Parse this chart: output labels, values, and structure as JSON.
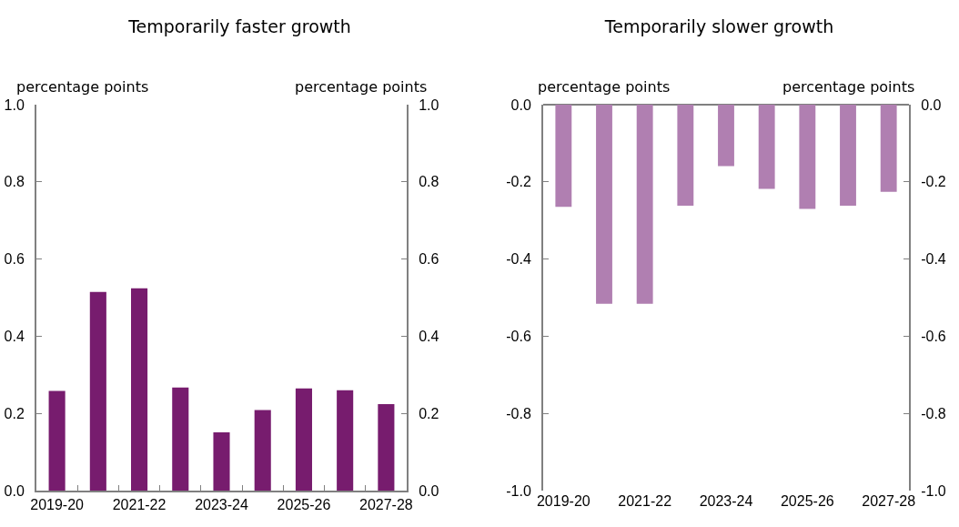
{
  "chart_data": [
    {
      "type": "bar",
      "title": "Temporarily faster growth",
      "ylabel": "percentage points",
      "y2label": "percentage points",
      "categories": [
        "2019-20",
        null,
        "2021-22",
        null,
        "2023-24",
        null,
        "2025-26",
        null,
        "2027-28"
      ],
      "series": [
        {
          "color": "#771c6e",
          "values": [
            0.258,
            0.515,
            0.524,
            0.267,
            0.151,
            0.209,
            0.265,
            0.26,
            0.224
          ]
        }
      ],
      "ylim": [
        0,
        1
      ],
      "yticks": [
        {
          "value": 0,
          "label": "0.0"
        },
        0.2,
        0.4,
        0.6,
        0.8,
        {
          "value": 1,
          "label": "1.0"
        }
      ],
      "y2lim": [
        0,
        1
      ],
      "y2ticks": [
        {
          "value": 0,
          "label": "0.0"
        },
        0.2,
        0.4,
        0.6,
        0.8,
        {
          "value": 1,
          "label": "1.0"
        }
      ],
      "grid": false
    },
    {
      "type": "bar",
      "title": "Temporarily slower growth",
      "ylabel": "percentage points",
      "y2label": "percentage points",
      "categories": [
        "2019-20",
        null,
        "2021-22",
        null,
        "2023-24",
        null,
        "2025-26",
        null,
        "2027-28"
      ],
      "series": [
        {
          "color": "#b07fb1",
          "values": [
            -0.265,
            -0.516,
            -0.516,
            -0.262,
            -0.159,
            -0.218,
            -0.27,
            -0.262,
            -0.226
          ]
        }
      ],
      "ylim": [
        -1,
        0
      ],
      "yticks": [
        {
          "value": -1,
          "label": "-1.0"
        },
        -0.8,
        -0.6,
        -0.4,
        -0.2,
        {
          "value": 0,
          "label": "0.0"
        }
      ],
      "y2lim": [
        -1,
        0
      ],
      "y2ticks": [
        {
          "value": -1,
          "label": "-1.0"
        },
        -0.8,
        -0.6,
        -0.4,
        -0.2,
        {
          "value": 0,
          "label": "0.0"
        }
      ],
      "grid": false
    }
  ]
}
